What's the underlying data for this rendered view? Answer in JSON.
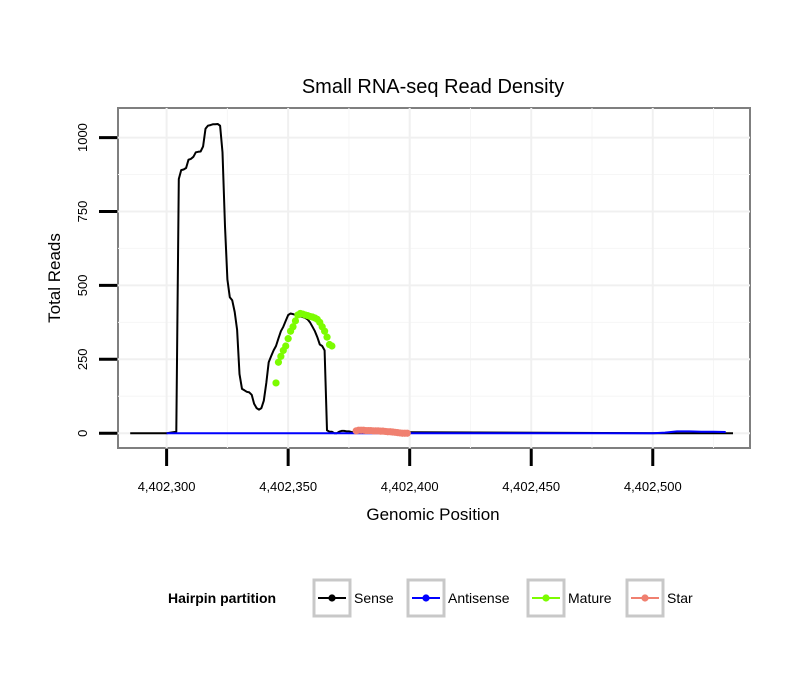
{
  "chart_data": {
    "type": "line",
    "title": "Small RNA-seq Read Density",
    "xlabel": "Genomic Position",
    "ylabel": "Total Reads",
    "xlim": [
      4402280,
      4402540
    ],
    "ylim": [
      -50,
      1100
    ],
    "x_ticks": [
      4402300,
      4402350,
      4402400,
      4402450,
      4402500
    ],
    "x_tick_labels": [
      "4,402,300",
      "4,402,350",
      "4,402,400",
      "4,402,450",
      "4,402,500"
    ],
    "y_ticks": [
      0,
      250,
      500,
      750,
      1000
    ],
    "y_tick_labels": [
      "0",
      "250",
      "500",
      "750",
      "1000"
    ],
    "grid": true,
    "legend": {
      "title": "Hairpin partition",
      "placement": "bottom",
      "entries": [
        "Sense",
        "Antisense",
        "Mature",
        "Star"
      ]
    },
    "series": [
      {
        "name": "Sense",
        "color": "#000000",
        "style": "line",
        "x": [
          4402285,
          4402300,
          4402304,
          4402305,
          4402306,
          4402307,
          4402308,
          4402309,
          4402310,
          4402311,
          4402312,
          4402313,
          4402314,
          4402315,
          4402316,
          4402317,
          4402318,
          4402319,
          4402320,
          4402321,
          4402322,
          4402323,
          4402324,
          4402325,
          4402326,
          4402327,
          4402328,
          4402329,
          4402330,
          4402331,
          4402332,
          4402333,
          4402334,
          4402335,
          4402336,
          4402337,
          4402338,
          4402339,
          4402340,
          4402341,
          4402342,
          4402343,
          4402344,
          4402345,
          4402346,
          4402347,
          4402348,
          4402349,
          4402350,
          4402351,
          4402352,
          4402353,
          4402354,
          4402355,
          4402356,
          4402357,
          4402358,
          4402359,
          4402360,
          4402361,
          4402362,
          4402363,
          4402364,
          4402365,
          4402366,
          4402367,
          4402368,
          4402369,
          4402370,
          4402371,
          4402372,
          4402373,
          4402374,
          4402375,
          4402376,
          4402380,
          4402400,
          4402505,
          4402510,
          4402515,
          4402520,
          4402525,
          4402530,
          4402533
        ],
        "y": [
          0,
          0,
          5,
          860,
          890,
          892,
          897,
          925,
          928,
          935,
          950,
          952,
          953,
          970,
          1030,
          1040,
          1042,
          1045,
          1045,
          1046,
          1040,
          950,
          700,
          520,
          460,
          450,
          410,
          350,
          200,
          150,
          145,
          140,
          138,
          130,
          100,
          85,
          80,
          85,
          110,
          170,
          240,
          260,
          280,
          295,
          320,
          345,
          360,
          380,
          400,
          405,
          403,
          400,
          398,
          395,
          393,
          390,
          385,
          375,
          360,
          345,
          325,
          300,
          295,
          280,
          10,
          5,
          5,
          0,
          0,
          5,
          8,
          8,
          6,
          6,
          4,
          3,
          3,
          0,
          0,
          0,
          0,
          0,
          0,
          0
        ]
      },
      {
        "name": "Antisense",
        "color": "#0000ff",
        "style": "line",
        "x": [
          4402300,
          4402350,
          4402400,
          4402450,
          4402500,
          4402505,
          4402510,
          4402515,
          4402520,
          4402525,
          4402530
        ],
        "y": [
          0,
          0,
          0,
          0,
          0,
          2,
          6,
          6,
          5,
          5,
          4
        ]
      },
      {
        "name": "Mature",
        "color": "#7cfc00",
        "style": "points",
        "x": [
          4402345,
          4402346,
          4402347,
          4402348,
          4402349,
          4402350,
          4402351,
          4402352,
          4402353,
          4402354,
          4402355,
          4402356,
          4402357,
          4402358,
          4402359,
          4402360,
          4402361,
          4402362,
          4402363,
          4402364,
          4402365,
          4402366,
          4402367,
          4402368
        ],
        "y": [
          170,
          240,
          260,
          280,
          295,
          320,
          345,
          360,
          380,
          400,
          405,
          403,
          400,
          398,
          395,
          393,
          390,
          385,
          375,
          360,
          345,
          325,
          300,
          295
        ]
      },
      {
        "name": "Star",
        "color": "#f08070",
        "style": "points",
        "x": [
          4402378,
          4402379,
          4402380,
          4402381,
          4402382,
          4402383,
          4402384,
          4402385,
          4402386,
          4402387,
          4402388,
          4402389,
          4402390,
          4402391,
          4402392,
          4402393,
          4402394,
          4402395,
          4402396,
          4402397,
          4402398,
          4402399
        ],
        "y": [
          8,
          10,
          10,
          10,
          9,
          9,
          9,
          8,
          8,
          8,
          7,
          7,
          6,
          5,
          5,
          4,
          3,
          2,
          1,
          0,
          0,
          0
        ]
      }
    ]
  }
}
